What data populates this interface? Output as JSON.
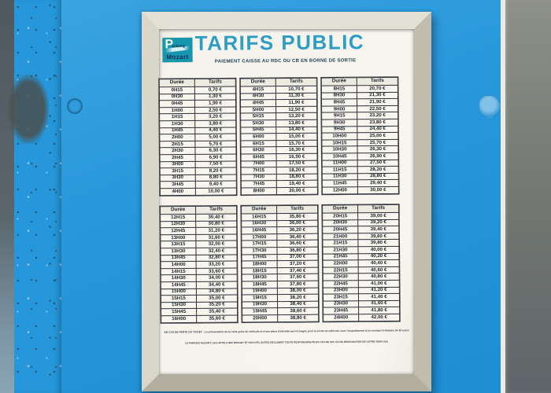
{
  "sign": {
    "title": "TARIFS PUBLIC",
    "subtitle": "PAIEMENT CAISSE AU RDC OU CB EN BORNE DE SORTIE",
    "logo": {
      "letter": "P",
      "word_rest": "arking",
      "name": "Mozart"
    },
    "table_headers": {
      "duration": "Durée",
      "price": "Tarifs"
    },
    "tables": [
      {
        "rows": [
          [
            "0H15",
            "0,70 €"
          ],
          [
            "0H30",
            "1,30 €"
          ],
          [
            "0H45",
            "1,90 €"
          ],
          [
            "1H00",
            "2,50 €"
          ],
          [
            "1H15",
            "3,20 €"
          ],
          [
            "1H30",
            "3,80 €"
          ],
          [
            "1H45",
            "4,40 €"
          ],
          [
            "2H00",
            "5,00 €"
          ],
          [
            "2H15",
            "5,70 €"
          ],
          [
            "2H30",
            "6,30 €"
          ],
          [
            "2H45",
            "6,90 €"
          ],
          [
            "3H00",
            "7,50 €"
          ],
          [
            "3H15",
            "8,20 €"
          ],
          [
            "3H30",
            "8,80 €"
          ],
          [
            "3H45",
            "9,40 €"
          ],
          [
            "4H00",
            "10,00 €"
          ]
        ]
      },
      {
        "rows": [
          [
            "4H15",
            "10,70 €"
          ],
          [
            "4H30",
            "11,30 €"
          ],
          [
            "4H45",
            "11,90 €"
          ],
          [
            "5H00",
            "12,50 €"
          ],
          [
            "5H15",
            "13,20 €"
          ],
          [
            "5H30",
            "13,80 €"
          ],
          [
            "5H45",
            "14,40 €"
          ],
          [
            "6H00",
            "15,00 €"
          ],
          [
            "6H15",
            "15,70 €"
          ],
          [
            "6H30",
            "16,30 €"
          ],
          [
            "6H45",
            "16,90 €"
          ],
          [
            "7H00",
            "17,50 €"
          ],
          [
            "7H15",
            "18,20 €"
          ],
          [
            "7H30",
            "18,80 €"
          ],
          [
            "7H45",
            "19,40 €"
          ],
          [
            "8H00",
            "20,00 €"
          ]
        ]
      },
      {
        "rows": [
          [
            "8H15",
            "20,70 €"
          ],
          [
            "8H30",
            "21,30 €"
          ],
          [
            "8H45",
            "21,90 €"
          ],
          [
            "9H00",
            "22,50 €"
          ],
          [
            "9H15",
            "23,20 €"
          ],
          [
            "9H30",
            "23,80 €"
          ],
          [
            "9H45",
            "24,40 €"
          ],
          [
            "10H00",
            "25,00 €"
          ],
          [
            "10H15",
            "25,70 €"
          ],
          [
            "10H30",
            "26,30 €"
          ],
          [
            "10H45",
            "26,90 €"
          ],
          [
            "11H00",
            "27,50 €"
          ],
          [
            "11H15",
            "28,20 €"
          ],
          [
            "11H30",
            "28,80 €"
          ],
          [
            "11H45",
            "29,40 €"
          ],
          [
            "12H00",
            "30,00 €"
          ]
        ]
      },
      {
        "rows": [
          [
            "12H15",
            "30,40 €"
          ],
          [
            "12H30",
            "30,80 €"
          ],
          [
            "12H45",
            "31,20 €"
          ],
          [
            "13H00",
            "31,60 €"
          ],
          [
            "13H15",
            "32,00 €"
          ],
          [
            "13H30",
            "32,40 €"
          ],
          [
            "13H45",
            "32,80 €"
          ],
          [
            "14H00",
            "33,20 €"
          ],
          [
            "14H15",
            "33,60 €"
          ],
          [
            "14H30",
            "34,00 €"
          ],
          [
            "14H45",
            "34,40 €"
          ],
          [
            "15H00",
            "34,80 €"
          ],
          [
            "15H15",
            "35,00 €"
          ],
          [
            "15H30",
            "35,20 €"
          ],
          [
            "15H45",
            "35,40 €"
          ],
          [
            "16H00",
            "35,60 €"
          ]
        ]
      },
      {
        "rows": [
          [
            "16H15",
            "35,80 €"
          ],
          [
            "16H30",
            "36,00 €"
          ],
          [
            "16H45",
            "36,20 €"
          ],
          [
            "17H00",
            "36,40 €"
          ],
          [
            "17H15",
            "36,60 €"
          ],
          [
            "17H30",
            "36,80 €"
          ],
          [
            "17H45",
            "37,00 €"
          ],
          [
            "18H00",
            "37,20 €"
          ],
          [
            "18H15",
            "37,40 €"
          ],
          [
            "18H30",
            "37,60 €"
          ],
          [
            "18H45",
            "37,80 €"
          ],
          [
            "19H00",
            "38,00 €"
          ],
          [
            "19H15",
            "38,20 €"
          ],
          [
            "19H30",
            "38,40 €"
          ],
          [
            "19H45",
            "38,60 €"
          ],
          [
            "20H00",
            "38,80 €"
          ]
        ]
      },
      {
        "rows": [
          [
            "20H15",
            "39,00 €"
          ],
          [
            "20H30",
            "39,20 €"
          ],
          [
            "20H45",
            "39,40 €"
          ],
          [
            "21H00",
            "39,60 €"
          ],
          [
            "21H15",
            "39,80 €"
          ],
          [
            "21H30",
            "40,00 €"
          ],
          [
            "21H45",
            "40,20 €"
          ],
          [
            "22H00",
            "40,40 €"
          ],
          [
            "22H15",
            "40,60 €"
          ],
          [
            "22H30",
            "40,80 €"
          ],
          [
            "22H45",
            "41,00 €"
          ],
          [
            "23H00",
            "41,20 €"
          ],
          [
            "23H15",
            "41,40 €"
          ],
          [
            "23H30",
            "41,60 €"
          ],
          [
            "23H45",
            "41,80 €"
          ],
          [
            "24H00",
            "42,00 €"
          ]
        ]
      }
    ],
    "notes": [
      "EN CAS DE PERTE DU TICKET : La présentation de la carte grise du véhicule et d'une pièce d'identité seront exigés pour la sortie du véhicule, avec l'acquittement d'un montant forfaitaire de 30 euros",
      "LE PARKING MOZART, LES HOTELS IBIS BUDGET ET NOVOTEL SUITES DECLINENT TOUTE RESPONSABILITE EN CAS DE VOL OU DE DEGRADATION DE VOTRE VEHICULE."
    ],
    "colors": {
      "title_teal": "#2d9dc4",
      "logo_teal": "#1797ae",
      "logo_navy": "#0d2d5e",
      "panel_blue": "#2697da",
      "frame_cream": "#ccc8bb",
      "paper": "#f6f4ec",
      "table_border": "#2b3036",
      "text_dark": "#20262e"
    }
  }
}
